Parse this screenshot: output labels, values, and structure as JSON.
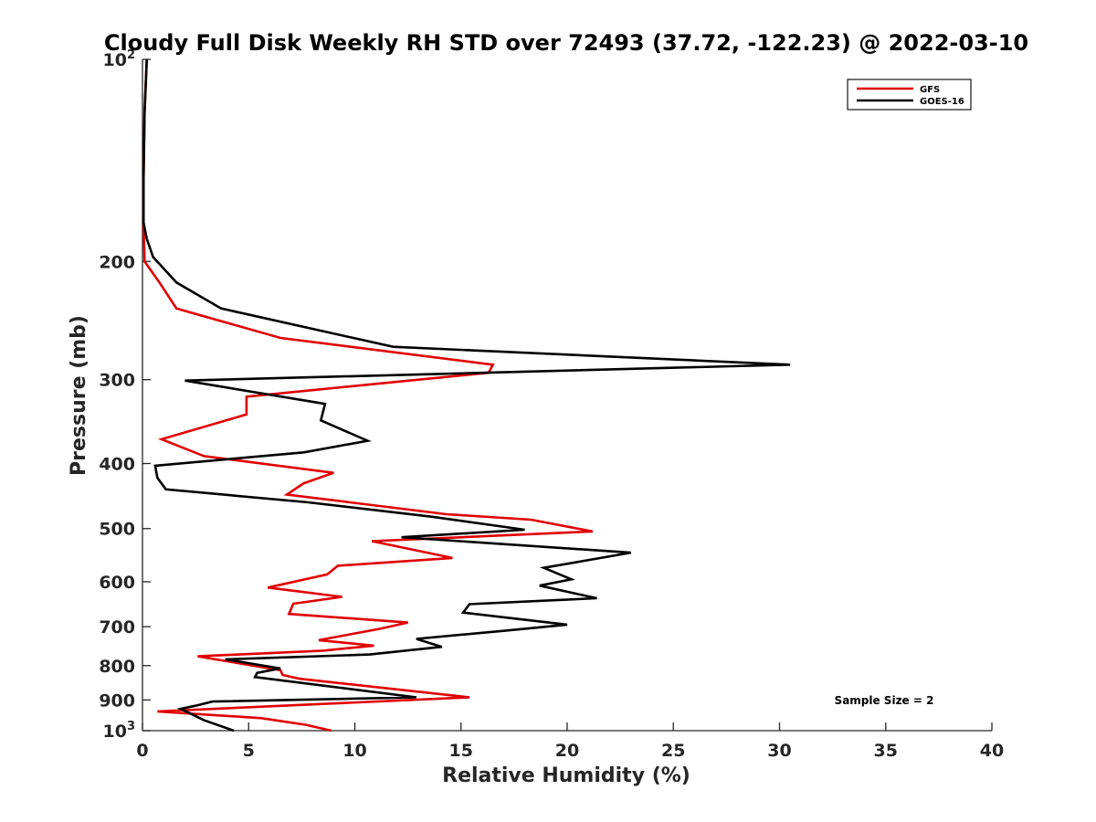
{
  "chart_data": {
    "type": "line",
    "title": "Cloudy Full Disk Weekly RH STD over 72493 (37.72, -122.23) @ 2022-03-10",
    "xlabel": "Relative Humidity (%)",
    "ylabel": "Pressure (mb)",
    "xlim": [
      0,
      40
    ],
    "ylim": [
      100,
      1000
    ],
    "y_scale": "log",
    "y_reversed": true,
    "grid": false,
    "legend_placement": "top-right",
    "x_ticks": [
      "0",
      "5",
      "10",
      "15",
      "20",
      "25",
      "30",
      "35",
      "40"
    ],
    "y_ticks": [
      {
        "value": 100,
        "base": "10",
        "exp": "2"
      },
      {
        "value": 200,
        "label": "200"
      },
      {
        "value": 300,
        "label": "300"
      },
      {
        "value": 400,
        "label": "400"
      },
      {
        "value": 500,
        "label": "500"
      },
      {
        "value": 600,
        "label": "600"
      },
      {
        "value": 700,
        "label": "700"
      },
      {
        "value": 800,
        "label": "800"
      },
      {
        "value": 900,
        "label": "900"
      },
      {
        "value": 1000,
        "base": "10",
        "exp": "3"
      }
    ],
    "series": [
      {
        "name": "GFS",
        "color": "#e00000",
        "points": [
          [
            0.2,
            100
          ],
          [
            0.1,
            120
          ],
          [
            0.05,
            150
          ],
          [
            0.05,
            175
          ],
          [
            0.1,
            200
          ],
          [
            0.8,
            215
          ],
          [
            1.6,
            235
          ],
          [
            6.5,
            260
          ],
          [
            16.5,
            285
          ],
          [
            16.3,
            293
          ],
          [
            4.9,
            318
          ],
          [
            4.9,
            338
          ],
          [
            0.9,
            368
          ],
          [
            2.9,
            390
          ],
          [
            9.0,
            413
          ],
          [
            7.6,
            428
          ],
          [
            6.8,
            445
          ],
          [
            14.3,
            476
          ],
          [
            18.3,
            485
          ],
          [
            21.2,
            505
          ],
          [
            10.8,
            522
          ],
          [
            14.6,
            553
          ],
          [
            9.2,
            568
          ],
          [
            8.7,
            585
          ],
          [
            5.9,
            612
          ],
          [
            9.4,
            632
          ],
          [
            7.1,
            647
          ],
          [
            6.9,
            670
          ],
          [
            12.5,
            690
          ],
          [
            11.2,
            705
          ],
          [
            8.3,
            733
          ],
          [
            10.9,
            747
          ],
          [
            8.5,
            760
          ],
          [
            2.6,
            775
          ],
          [
            6.5,
            813
          ],
          [
            6.6,
            826
          ],
          [
            7.4,
            837
          ],
          [
            15.4,
            892
          ],
          [
            0.7,
            936
          ],
          [
            5.6,
            958
          ],
          [
            7.7,
            980
          ],
          [
            8.9,
            1000
          ]
        ]
      },
      {
        "name": "GOES-16",
        "color": "#000000",
        "points": [
          [
            0.2,
            100
          ],
          [
            0.1,
            120
          ],
          [
            0.05,
            150
          ],
          [
            0.05,
            175
          ],
          [
            0.2,
            185
          ],
          [
            0.5,
            197
          ],
          [
            1.6,
            215
          ],
          [
            3.7,
            235
          ],
          [
            11.8,
            268
          ],
          [
            30.5,
            285
          ],
          [
            2.0,
            301
          ],
          [
            8.6,
            326
          ],
          [
            8.4,
            345
          ],
          [
            10.6,
            370
          ],
          [
            7.6,
            385
          ],
          [
            0.6,
            403
          ],
          [
            0.7,
            420
          ],
          [
            1.1,
            437
          ],
          [
            7.8,
            457
          ],
          [
            13.6,
            480
          ],
          [
            18.0,
            502
          ],
          [
            12.2,
            515
          ],
          [
            23.0,
            543
          ],
          [
            18.9,
            572
          ],
          [
            20.2,
            595
          ],
          [
            18.7,
            608
          ],
          [
            21.4,
            635
          ],
          [
            15.4,
            648
          ],
          [
            15.1,
            667
          ],
          [
            20.0,
            695
          ],
          [
            17.0,
            710
          ],
          [
            12.9,
            730
          ],
          [
            14.1,
            750
          ],
          [
            10.7,
            770
          ],
          [
            3.9,
            783
          ],
          [
            6.5,
            808
          ],
          [
            5.4,
            820
          ],
          [
            5.3,
            832
          ],
          [
            12.9,
            892
          ],
          [
            3.3,
            905
          ],
          [
            2.5,
            918
          ],
          [
            1.8,
            928
          ],
          [
            2.9,
            965
          ],
          [
            4.3,
            1000
          ]
        ]
      }
    ],
    "annotations": [
      "Sample Size = 2"
    ]
  }
}
